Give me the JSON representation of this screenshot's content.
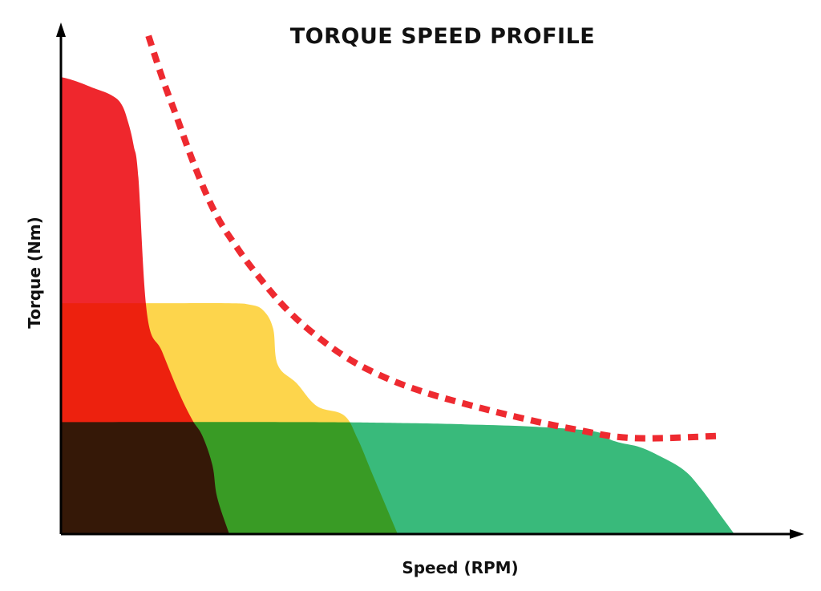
{
  "chart_data": {
    "type": "area",
    "title": "TORQUE SPEED PROFILE",
    "xlabel": "Speed (RPM)",
    "ylabel": "Torque (Nm)",
    "xlim": [
      0,
      100
    ],
    "ylim": [
      0,
      100
    ],
    "grid": false,
    "legend": "none",
    "series": [
      {
        "color": "#ef2329",
        "x": [
          0,
          2,
          5,
          7.5,
          9,
          10,
          10.8,
          11.5,
          12.8,
          15,
          17.5,
          19.5,
          21,
          22.5,
          23.2,
          25
        ],
        "values": [
          100,
          99.2,
          97.5,
          96,
          94,
          90,
          85,
          78,
          48,
          40,
          31,
          25,
          21.5,
          15,
          8,
          0
        ]
      },
      {
        "color": "#fdd448",
        "x": [
          0,
          15,
          25,
          28,
          30,
          31.5,
          32.2,
          35,
          38,
          42,
          44,
          46,
          48,
          50
        ],
        "values": [
          50.5,
          50.5,
          50.5,
          50.2,
          49,
          45,
          37,
          33,
          28,
          26,
          21,
          14,
          7,
          0
        ]
      },
      {
        "color": "#35b978",
        "x": [
          0,
          35,
          50,
          60,
          70,
          79,
          81,
          83,
          86,
          89,
          92.5,
          95,
          98,
          100
        ],
        "values": [
          24.5,
          24.5,
          24.3,
          24,
          23.5,
          22.5,
          21,
          20,
          19,
          17,
          14,
          10,
          4,
          0
        ]
      }
    ],
    "envelope": {
      "style": "dashed",
      "color": "#ee2a30",
      "x": [
        13,
        15,
        17,
        20,
        23,
        26,
        29,
        33,
        37,
        42,
        47,
        53,
        60,
        68,
        76,
        85,
        98
      ],
      "values": [
        109,
        100,
        92,
        80,
        70,
        63,
        57,
        50,
        44.5,
        39,
        35,
        31.5,
        28.5,
        25.5,
        23,
        21,
        21.5
      ]
    }
  }
}
